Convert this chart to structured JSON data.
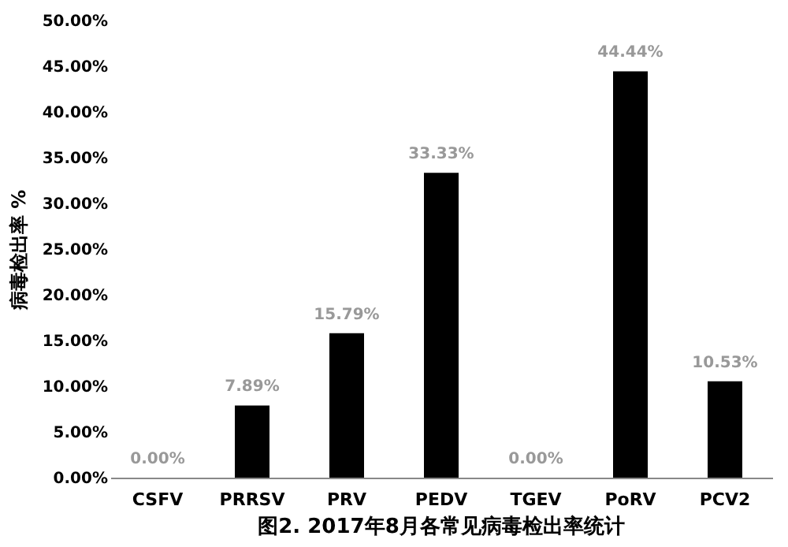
{
  "chart_data": {
    "type": "bar",
    "ylabel": "病毒检出率 %",
    "categories": [
      "CSFV",
      "PRRSV",
      "PRV",
      "PEDV",
      "TGEV",
      "PoRV",
      "PCV2"
    ],
    "values": [
      0,
      7.89,
      15.79,
      33.33,
      0,
      44.44,
      10.53
    ],
    "value_labels": [
      "0.00%",
      "7.89%",
      "15.79%",
      "33.33%",
      "0.00%",
      "44.44%",
      "10.53%"
    ],
    "color": "#000000",
    "ylim": [
      0,
      50
    ],
    "yticks": [
      {
        "value": 0,
        "label": "0.00%"
      },
      {
        "value": 5,
        "label": "5.00%"
      },
      {
        "value": 10,
        "label": "10.00%"
      },
      {
        "value": 15,
        "label": "15.00%"
      },
      {
        "value": 20,
        "label": "20.00%"
      },
      {
        "value": 25,
        "label": "25.00%"
      },
      {
        "value": 30,
        "label": "30.00%"
      },
      {
        "value": 35,
        "label": "35.00%"
      },
      {
        "value": 40,
        "label": "40.00%"
      },
      {
        "value": 45,
        "label": "45.00%"
      },
      {
        "value": 50,
        "label": "50.00%"
      }
    ],
    "grid": false,
    "annotations": [
      "图2. 2017年8月各常见病毒检出率统计"
    ]
  }
}
